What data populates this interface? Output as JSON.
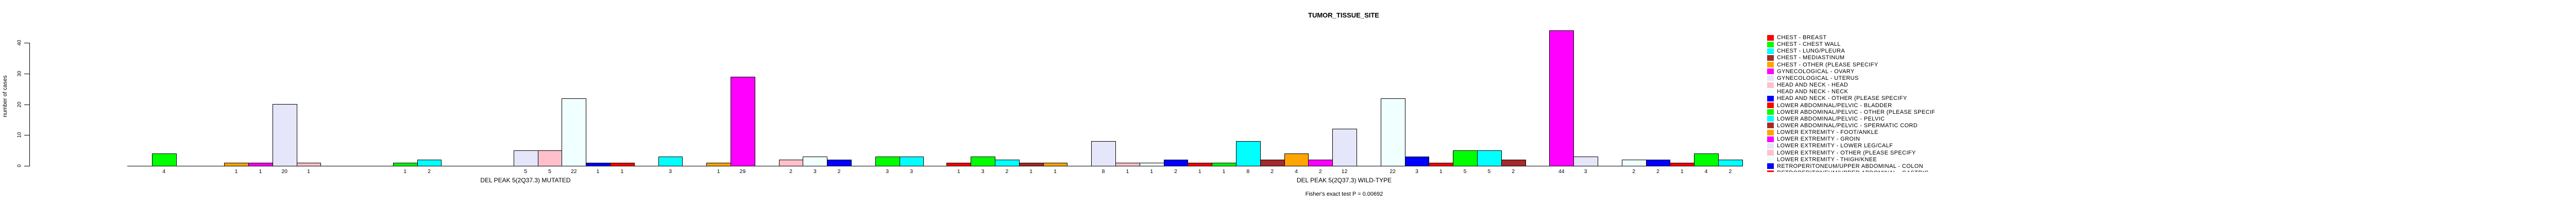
{
  "title": "TUMOR_TISSUE_SITE",
  "y_axis": {
    "label": "number of cases",
    "ticks": [
      0,
      10,
      20,
      30,
      40
    ]
  },
  "fisher_note": "Fisher's exact test P = 0.00692",
  "legend": {
    "entries": [
      {
        "label": "CHEST - BREAST",
        "color": "#FF0000",
        "clipped": false
      },
      {
        "label": "CHEST - CHEST WALL",
        "color": "#00FF00",
        "clipped": false
      },
      {
        "label": "CHEST - LUNG/PLEURA",
        "color": "#00FFFF",
        "clipped": false
      },
      {
        "label": "CHEST - MEDIASTINUM",
        "color": "#A52A2A",
        "clipped": false
      },
      {
        "label": "CHEST - OTHER (PLEASE SPECIFY",
        "color": "#FFA500",
        "clipped": false
      },
      {
        "label": "GYNECOLOGICAL - OVARY",
        "color": "#FF00FF",
        "clipped": false
      },
      {
        "label": "GYNECOLOGICAL - UTERUS",
        "color": "#E6E6FA",
        "clipped": false
      },
      {
        "label": "HEAD AND NECK - HEAD",
        "color": "#FFC0CB",
        "clipped": false
      },
      {
        "label": "HEAD AND NECK - NECK",
        "color": "#F0FFFF",
        "clipped": false
      },
      {
        "label": "HEAD AND NECK - OTHER (PLEASE SPECIFY",
        "color": "#0000FF",
        "clipped": false
      },
      {
        "label": "LOWER ABDOMINAL/PELVIC - BLADDER",
        "color": "#FF0000",
        "clipped": false
      },
      {
        "label": "LOWER ABDOMINAL/PELVIC - OTHER (PLEASE SPECIFY",
        "color": "#00FF00",
        "clipped": false
      },
      {
        "label": "LOWER ABDOMINAL/PELVIC - PELVIC",
        "color": "#00FFFF",
        "clipped": false
      },
      {
        "label": "LOWER ABDOMINAL/PELVIC - SPERMATIC CORD",
        "color": "#A52A2A",
        "clipped": false
      },
      {
        "label": "LOWER EXTREMITY - FOOT/ANKLE",
        "color": "#FFA500",
        "clipped": false
      },
      {
        "label": "LOWER EXTREMITY - GROIN",
        "color": "#FF00FF",
        "clipped": false
      },
      {
        "label": "LOWER EXTREMITY - LOWER LEG/CALF",
        "color": "#E6E6FA",
        "clipped": false
      },
      {
        "label": "LOWER EXTREMITY - OTHER (PLEASE SPECIFY",
        "color": "#FFC0CB",
        "clipped": false
      },
      {
        "label": "LOWER EXTREMITY - THIGH/KNEE",
        "color": "#F0FFFF",
        "clipped": false
      },
      {
        "label": "RETROPERITONEUM/UPPER ABDOMINAL - COLON",
        "color": "#0000FF",
        "clipped": false
      },
      {
        "label": "RETROPERITONEUM/UPPER ABDOMINAL - GASTRIC",
        "color": "#FF0000",
        "clipped": true
      }
    ]
  },
  "chart_data": {
    "type": "bar",
    "title": "TUMOR_TISSUE_SITE",
    "xlabel": "",
    "ylabel": "number of cases",
    "ylim": [
      0,
      40
    ],
    "yticks": [
      0,
      10,
      20,
      30,
      40
    ],
    "grid": false,
    "legend_position": "right",
    "annotation": "Fisher's exact test P = 0.00692",
    "color_cycle": [
      "#FF0000",
      "#00FF00",
      "#00FFFF",
      "#A52A2A",
      "#FFA500",
      "#FF00FF",
      "#E6E6FA",
      "#FFC0CB",
      "#F0FFFF",
      "#0000FF"
    ],
    "note": "33 category slots per group; colors cycle through color_cycle; value 0 = no bar drawn; bars labeled with their value below the baseline",
    "groups": [
      {
        "label": "DEL PEAK 5(2Q37.3) MUTATED",
        "values": [
          0,
          4,
          0,
          0,
          1,
          1,
          20,
          1,
          0,
          0,
          0,
          1,
          2,
          0,
          0,
          0,
          5,
          5,
          22,
          1,
          1,
          0,
          3,
          0,
          1,
          29,
          0,
          2,
          3,
          2,
          0,
          3,
          3
        ]
      },
      {
        "label": "DEL PEAK 5(2Q37.3) WILD-TYPE",
        "values": [
          1,
          3,
          2,
          1,
          1,
          0,
          8,
          1,
          1,
          2,
          1,
          1,
          8,
          2,
          4,
          2,
          12,
          0,
          22,
          3,
          1,
          5,
          5,
          2,
          0,
          44,
          3,
          0,
          2,
          2,
          1,
          4,
          2
        ]
      }
    ]
  }
}
